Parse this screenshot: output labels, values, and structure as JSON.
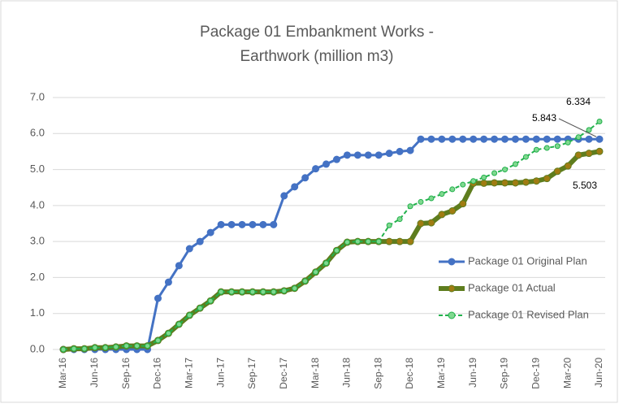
{
  "chart_data": {
    "type": "line",
    "title": [
      "Package 01 Embankment Works -",
      "Earthwork (million m3)"
    ],
    "categories": [
      "Mar-16",
      null,
      null,
      "Jun-16",
      null,
      null,
      "Sep-16",
      null,
      null,
      "Dec-16",
      null,
      null,
      "Mar-17",
      null,
      null,
      "Jun-17",
      null,
      null,
      "Sep-17",
      null,
      null,
      "Dec-17",
      null,
      null,
      "Mar-18",
      null,
      null,
      "Jun-18",
      null,
      null,
      "Sep-18",
      null,
      null,
      "Dec-18",
      null,
      null,
      "Mar-19",
      null,
      null,
      "Jun-19",
      null,
      null,
      "Sep-19",
      null,
      null,
      "Dec-19",
      null,
      null,
      "Mar-20",
      null,
      null,
      "Jun-20"
    ],
    "series": [
      {
        "name": "Package 01 Original Plan",
        "color": "#4472c4",
        "width": 3,
        "values": [
          0,
          0,
          0,
          0,
          0,
          0,
          0,
          0,
          0,
          1.42,
          1.87,
          2.33,
          2.8,
          3.0,
          3.25,
          3.47,
          3.47,
          3.47,
          3.47,
          3.47,
          3.47,
          4.27,
          4.52,
          4.77,
          5.02,
          5.15,
          5.28,
          5.4,
          5.4,
          5.4,
          5.4,
          5.45,
          5.5,
          5.53,
          5.843,
          5.843,
          5.843,
          5.843,
          5.843,
          5.843,
          5.843,
          5.843,
          5.843,
          5.843,
          5.843,
          5.843,
          5.843,
          5.843,
          5.843,
          5.843,
          5.843,
          5.843
        ]
      },
      {
        "name": "Package 01 Actual",
        "color": "#5e7d1e",
        "marker": "#a07c12",
        "width": 6,
        "values": [
          0,
          0.02,
          0.02,
          0.05,
          0.05,
          0.07,
          0.1,
          0.1,
          0.1,
          0.25,
          0.45,
          0.7,
          0.95,
          1.15,
          1.35,
          1.6,
          1.6,
          1.6,
          1.6,
          1.6,
          1.6,
          1.63,
          1.7,
          1.9,
          2.15,
          2.4,
          2.75,
          2.98,
          3.0,
          3.0,
          3.0,
          3.0,
          3.0,
          3.0,
          3.5,
          3.52,
          3.75,
          3.85,
          4.05,
          4.62,
          4.62,
          4.63,
          4.63,
          4.63,
          4.65,
          4.68,
          4.75,
          4.95,
          5.1,
          5.4,
          5.45,
          5.503
        ]
      },
      {
        "name": "Package 01 Revised Plan",
        "color": "#22b14c",
        "marker": "#7fd88f",
        "width": 2,
        "dash": true,
        "values": [
          0,
          0.02,
          0.02,
          0.05,
          0.05,
          0.07,
          0.1,
          0.1,
          0.1,
          0.25,
          0.45,
          0.7,
          0.95,
          1.15,
          1.35,
          1.6,
          1.6,
          1.6,
          1.6,
          1.6,
          1.6,
          1.63,
          1.7,
          1.9,
          2.15,
          2.4,
          2.75,
          2.98,
          3.0,
          3.0,
          3.0,
          3.45,
          3.62,
          3.98,
          4.1,
          4.2,
          4.32,
          4.45,
          4.58,
          4.68,
          4.78,
          4.9,
          5.0,
          5.15,
          5.35,
          5.55,
          5.6,
          5.65,
          5.75,
          5.9,
          6.1,
          6.334
        ]
      }
    ],
    "ylim": [
      0,
      7
    ],
    "yticks": [
      {
        "value": 0,
        "label": "0.0"
      },
      {
        "value": 1,
        "label": "1.0"
      },
      {
        "value": 2,
        "label": "2.0"
      },
      {
        "value": 3,
        "label": "3.0"
      },
      {
        "value": 4,
        "label": "4.0"
      },
      {
        "value": 5,
        "label": "5.0"
      },
      {
        "value": 6,
        "label": "6.0"
      },
      {
        "value": 7,
        "label": "7.0"
      }
    ],
    "grid": true,
    "legend": "right"
  }
}
